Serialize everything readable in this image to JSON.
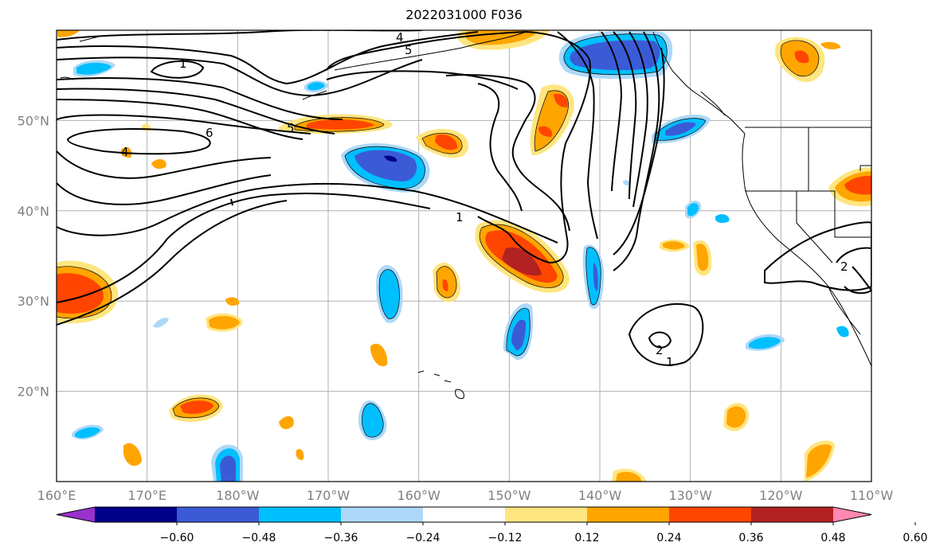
{
  "title": "2022031000 F036",
  "map": {
    "projection": "cylindrical",
    "lon_range": [
      160,
      250
    ],
    "lat_range": [
      10,
      60
    ],
    "grid": true,
    "gridline_color": "#b0b0b0"
  },
  "axes": {
    "x_ticks": [
      "160°E",
      "170°E",
      "180°W",
      "170°W",
      "160°W",
      "150°W",
      "140°W",
      "130°W",
      "120°W",
      "110°W"
    ],
    "y_ticks": [
      "50°N",
      "40°N",
      "30°N",
      "20°N"
    ]
  },
  "contour_labels": [
    "1",
    "5",
    "4",
    "5",
    "6",
    "4",
    "1",
    "2",
    "1",
    "2"
  ],
  "colorbar": {
    "colors": [
      "#9932cc",
      "#00008b",
      "#3b5bd6",
      "#00bfff",
      "#add8f8",
      "#ffffff",
      "#ffe57f",
      "#ffa500",
      "#ff4500",
      "#b22222",
      "#ff88b0"
    ],
    "tick_labels": [
      "−0.60",
      "−0.48",
      "−0.36",
      "−0.24",
      "−0.12",
      "0.12",
      "0.24",
      "0.36",
      "0.48",
      "0.60"
    ],
    "extend": "both"
  },
  "chart_data": {
    "type": "heatmap",
    "title": "2022031000 F036",
    "fill_levels": [
      -0.6,
      -0.48,
      -0.36,
      -0.24,
      -0.12,
      0.12,
      0.24,
      0.36,
      0.48,
      0.6
    ],
    "fill_colors": [
      "#9932cc",
      "#00008b",
      "#3b5bd6",
      "#00bfff",
      "#add8f8",
      "#ffffff",
      "#ffe57f",
      "#ffa500",
      "#ff4500",
      "#b22222",
      "#ff88b0"
    ],
    "contour_values_labeled": [
      1,
      2,
      4,
      5,
      6
    ],
    "x_range": [
      160,
      250
    ],
    "y_range": [
      10,
      60
    ]
  }
}
